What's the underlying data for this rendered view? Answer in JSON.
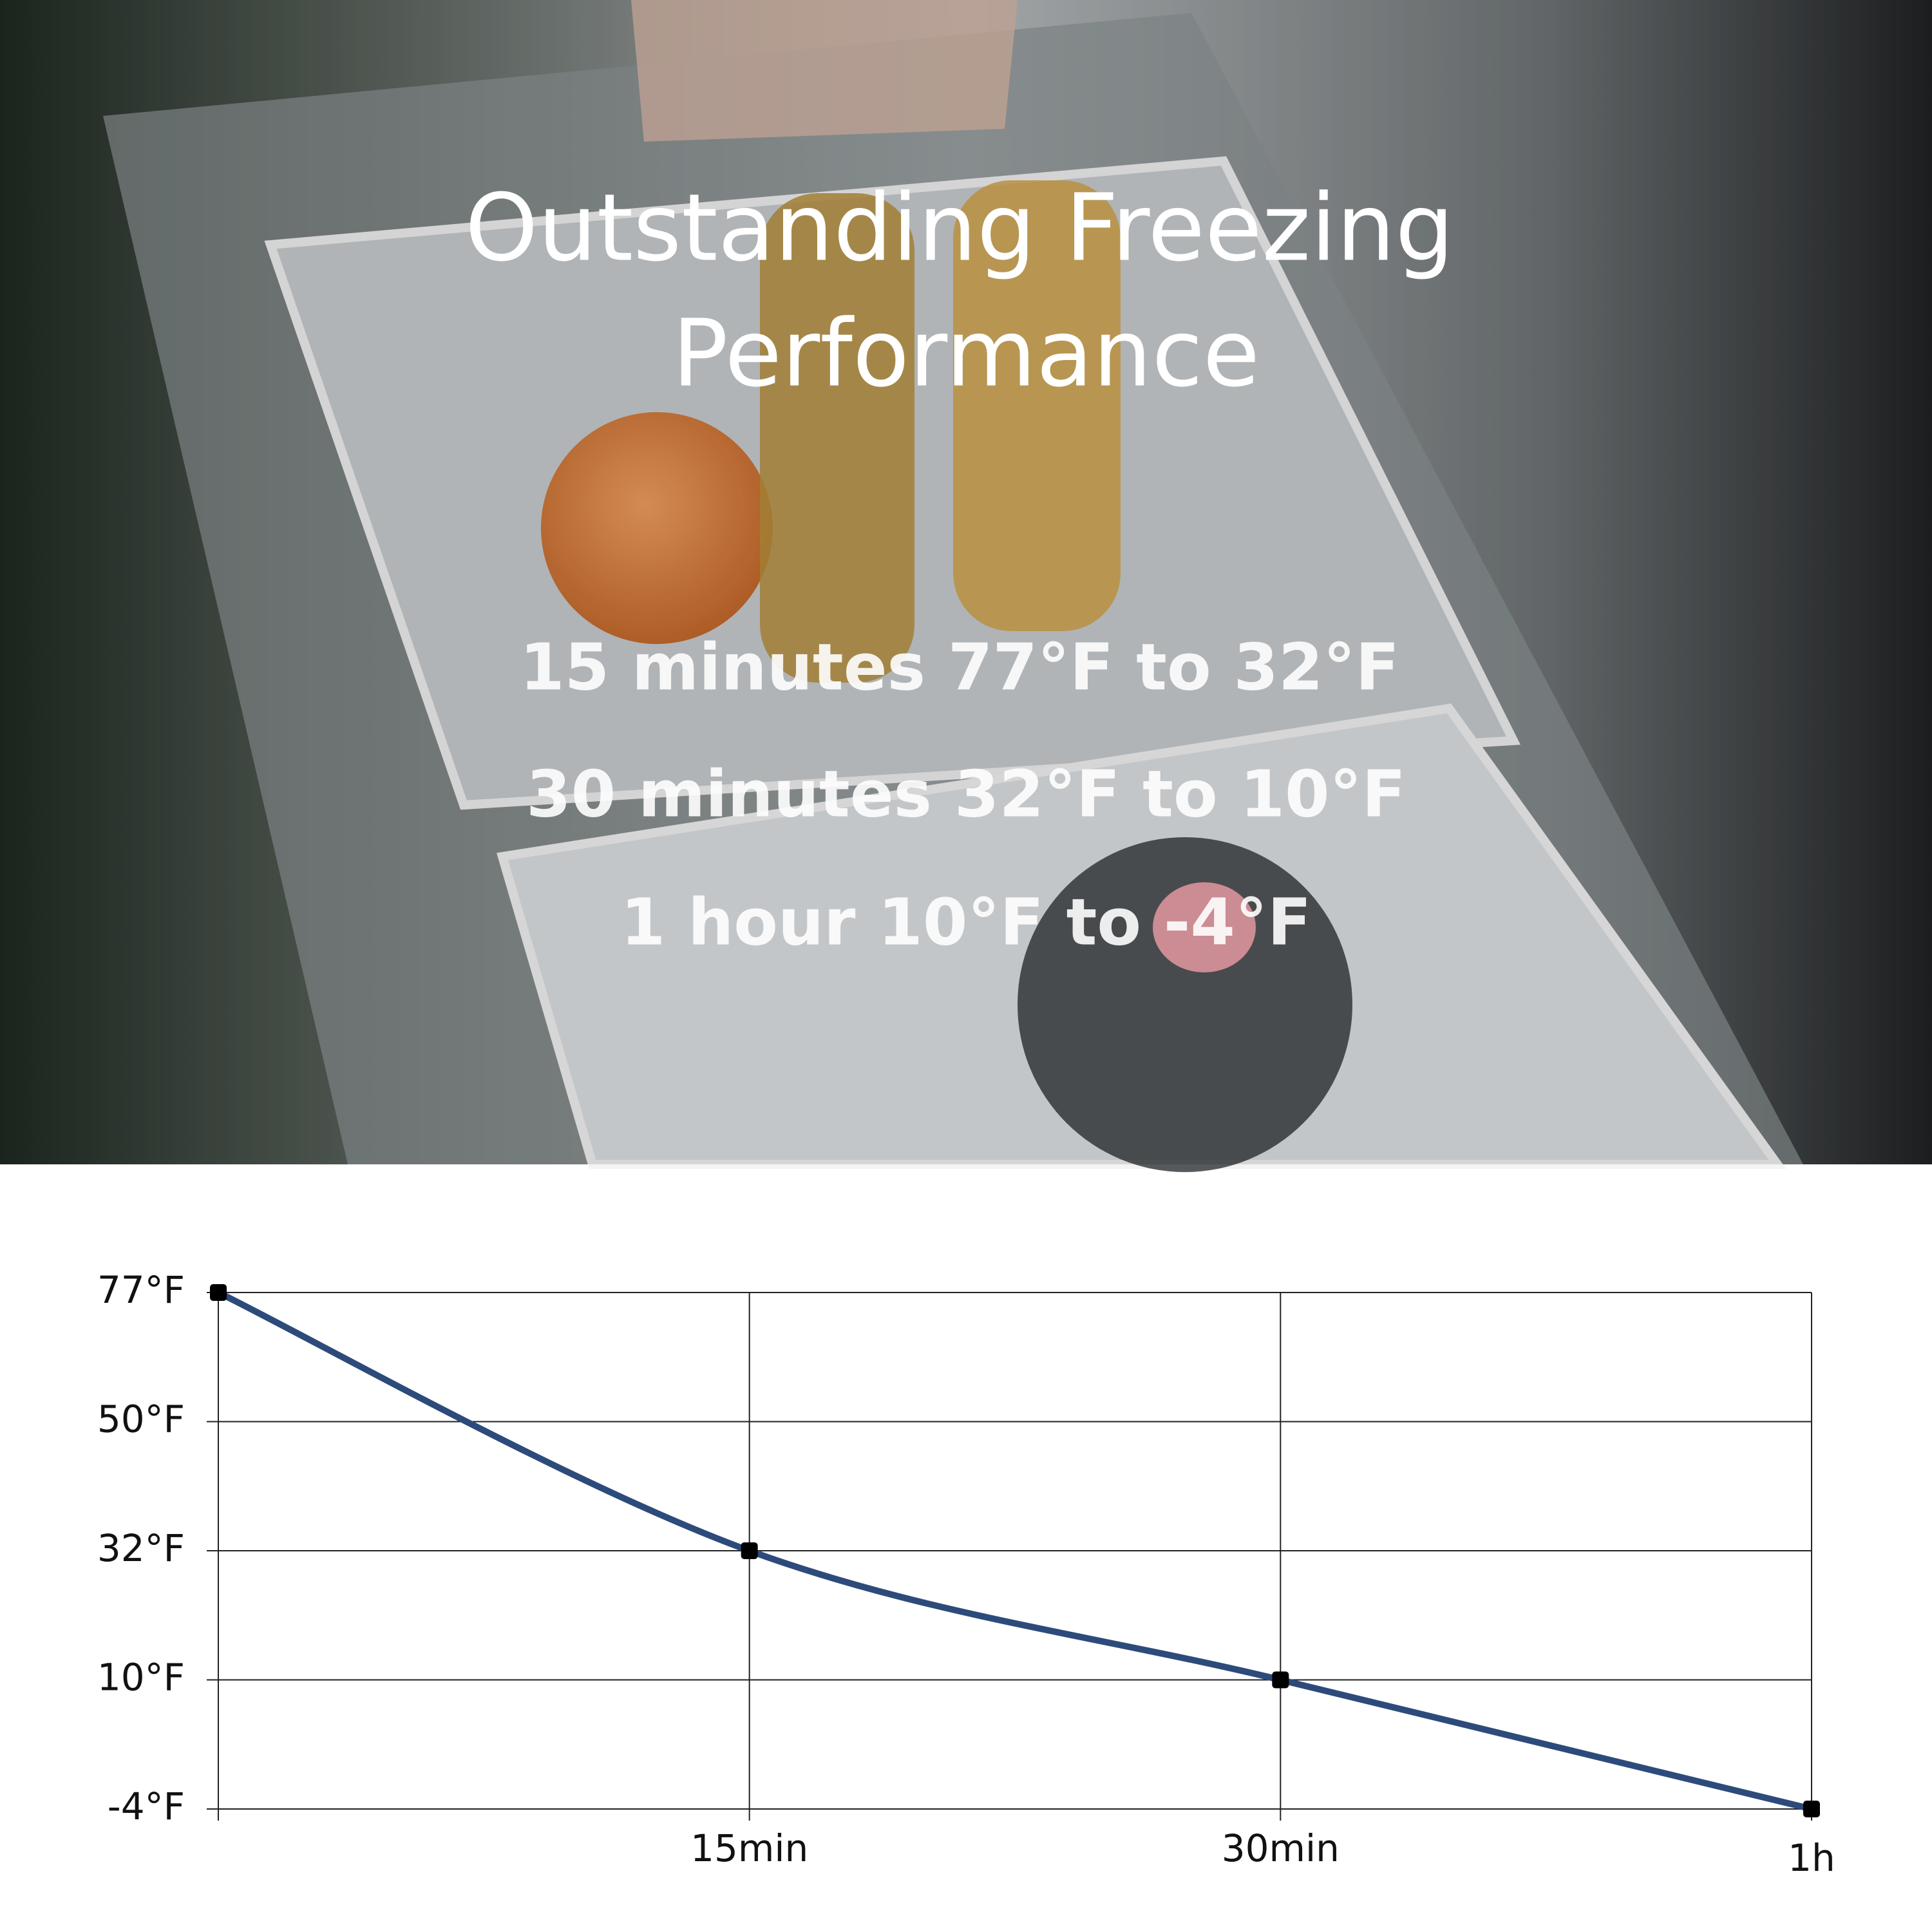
{
  "header": {
    "title_lines": [
      "Outstanding Freezing",
      "Performance"
    ]
  },
  "stats": [
    "15 minutes 77°F to 32°F",
    "30 minutes 32°F to 10°F",
    "1 hour 10°F to -4°F"
  ],
  "chart_data": {
    "type": "line",
    "categories": [
      null,
      "15min",
      "30min",
      "1h"
    ],
    "values": [
      77,
      32,
      10,
      -4
    ],
    "color": "#2d4b7a",
    "marker_color": "#000000",
    "ylim": [
      -4,
      77
    ],
    "yticks": [
      {
        "value": 77,
        "label": "77°F"
      },
      {
        "value": 50,
        "label": "50°F"
      },
      {
        "value": 32,
        "label": "32°F"
      },
      {
        "value": 10,
        "label": "10°F"
      },
      {
        "value": -4,
        "label": "-4°F"
      }
    ],
    "grid": true
  }
}
